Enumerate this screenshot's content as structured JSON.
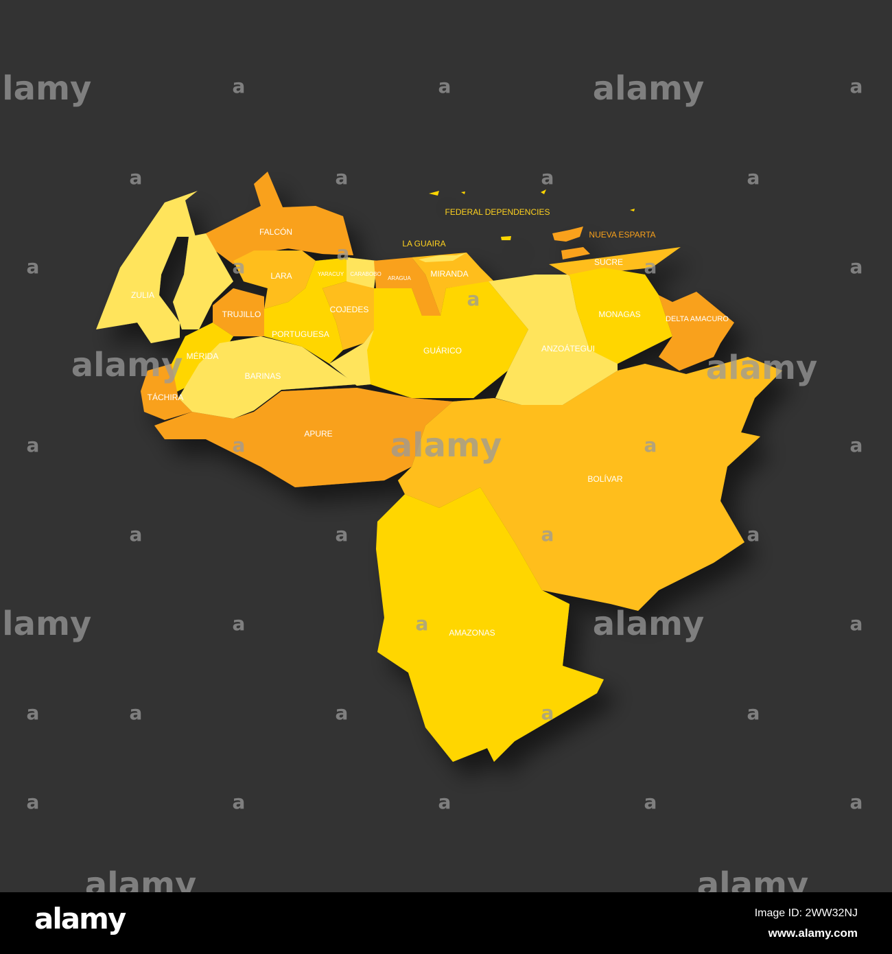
{
  "map": {
    "colors": {
      "background": "#333333",
      "light": "#FFE45C",
      "yellow": "#FFD600",
      "gold": "#FFBE1A",
      "orange": "#F9A11B",
      "label": "#FFFFFF",
      "label_offshore_yellow": "#FFD21F",
      "label_offshore_orange": "#F9A11B"
    },
    "states": [
      {
        "id": "zulia",
        "name": "ZULIA",
        "shade": "light"
      },
      {
        "id": "falcon",
        "name": "FALCÓN",
        "shade": "orange"
      },
      {
        "id": "lara",
        "name": "LARA",
        "shade": "gold"
      },
      {
        "id": "trujillo",
        "name": "TRUJILLO",
        "shade": "orange"
      },
      {
        "id": "merida",
        "name": "MÉRIDA",
        "shade": "yellow"
      },
      {
        "id": "tachira",
        "name": "TÁCHIRA",
        "shade": "orange"
      },
      {
        "id": "barinas",
        "name": "BARINAS",
        "shade": "light"
      },
      {
        "id": "portuguesa",
        "name": "PORTUGUESA",
        "shade": "yellow"
      },
      {
        "id": "yaracuy",
        "name": "YARACUY",
        "shade": "yellow"
      },
      {
        "id": "carabobo",
        "name": "CARABOBO",
        "shade": "light"
      },
      {
        "id": "cojedes",
        "name": "COJEDES",
        "shade": "gold"
      },
      {
        "id": "aragua",
        "name": "ARAGUA",
        "shade": "orange"
      },
      {
        "id": "miranda",
        "name": "MIRANDA",
        "shade": "gold"
      },
      {
        "id": "la_guaira",
        "name": "LA GUAIRA",
        "shade": "light"
      },
      {
        "id": "guarico",
        "name": "GUÁRICO",
        "shade": "yellow"
      },
      {
        "id": "anzoategui",
        "name": "ANZOÁTEGUI",
        "shade": "light"
      },
      {
        "id": "sucre",
        "name": "SUCRE",
        "shade": "gold"
      },
      {
        "id": "monagas",
        "name": "MONAGAS",
        "shade": "yellow"
      },
      {
        "id": "delta_amacuro",
        "name": "DELTA AMACURO",
        "shade": "orange"
      },
      {
        "id": "nueva_esparta",
        "name": "NUEVA ESPARTA",
        "shade": "orange"
      },
      {
        "id": "federal_dependencies",
        "name": "FEDERAL DEPENDENCIES",
        "shade": "yellow"
      },
      {
        "id": "apure",
        "name": "APURE",
        "shade": "orange"
      },
      {
        "id": "bolivar",
        "name": "BOLÍVAR",
        "shade": "gold"
      },
      {
        "id": "amazonas",
        "name": "AMAZONAS",
        "shade": "yellow"
      }
    ]
  },
  "watermark": {
    "big": "alamy",
    "small": "a"
  },
  "footer": {
    "logo": "alamy",
    "image_id": "Image ID: 2WW32NJ",
    "site": "www.alamy.com"
  }
}
